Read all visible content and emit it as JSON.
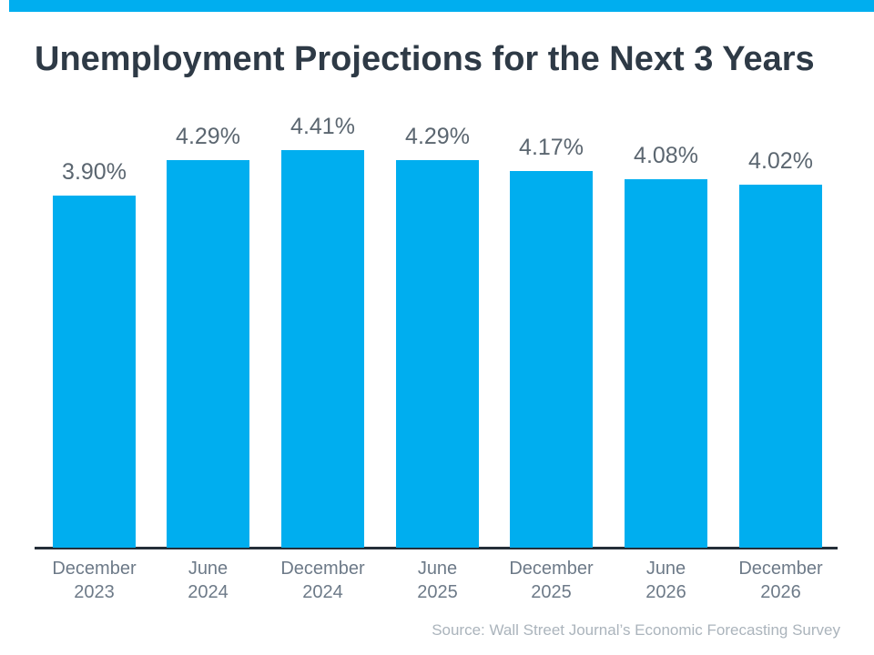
{
  "header": {
    "accent_bar_color": "#00AEEF"
  },
  "chart_data": {
    "type": "bar",
    "title": "Unemployment Projections for the Next 3 Years",
    "categories": [
      "December 2023",
      "June 2024",
      "December 2024",
      "June 2025",
      "December 2025",
      "June 2026",
      "December 2026"
    ],
    "values": [
      3.9,
      4.29,
      4.41,
      4.29,
      4.17,
      4.08,
      4.02
    ],
    "value_labels": [
      "3.90%",
      "4.29%",
      "4.41%",
      "4.29%",
      "4.17%",
      "4.08%",
      "4.02%"
    ],
    "xlabel": "",
    "ylabel": "",
    "ylim": [
      0,
      4.41
    ],
    "grid": false,
    "legend": false,
    "bar_color": "#00AEEF",
    "title_color": "#2E3A46",
    "value_label_color": "#5B6670",
    "category_label_color": "#6D7A88",
    "axis_line_color": "#252E38"
  },
  "footer": {
    "source": "Source: Wall Street Journal’s Economic Forecasting Survey",
    "source_color": "#ABB4BC"
  }
}
